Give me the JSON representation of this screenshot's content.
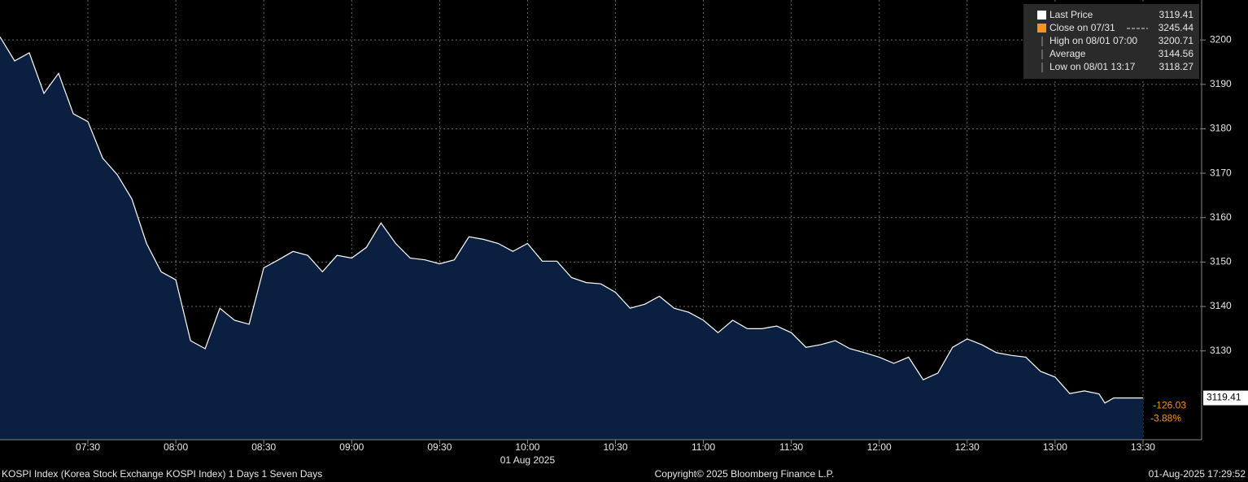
{
  "chart_data": {
    "type": "area",
    "x": [
      "07:00",
      "07:05",
      "07:10",
      "07:15",
      "07:20",
      "07:25",
      "07:30",
      "07:35",
      "07:40",
      "07:45",
      "07:50",
      "07:55",
      "08:00",
      "08:05",
      "08:10",
      "08:15",
      "08:20",
      "08:25",
      "08:30",
      "08:35",
      "08:40",
      "08:45",
      "08:50",
      "08:55",
      "09:00",
      "09:05",
      "09:10",
      "09:15",
      "09:20",
      "09:25",
      "09:30",
      "09:35",
      "09:40",
      "09:45",
      "09:50",
      "09:55",
      "10:00",
      "10:05",
      "10:10",
      "10:15",
      "10:20",
      "10:25",
      "10:30",
      "10:35",
      "10:40",
      "10:45",
      "10:50",
      "10:55",
      "11:00",
      "11:05",
      "11:10",
      "11:15",
      "11:20",
      "11:25",
      "11:30",
      "11:35",
      "11:40",
      "11:45",
      "11:50",
      "11:55",
      "12:00",
      "12:05",
      "12:10",
      "12:15",
      "12:20",
      "12:25",
      "12:30",
      "12:35",
      "12:40",
      "12:45",
      "12:50",
      "12:55",
      "13:00",
      "13:05",
      "13:10",
      "13:15",
      "13:17",
      "13:20",
      "13:25",
      "13:30"
    ],
    "series": [
      {
        "name": "Last Price",
        "color": "#ffffff",
        "fill": "#0b2040",
        "last": 3119.41,
        "values": [
          3200.71,
          3195.3,
          3197.1,
          3188,
          3192.5,
          3183.4,
          3181.6,
          3173.4,
          3169.7,
          3164.2,
          3154.2,
          3147.8,
          3146,
          3132.3,
          3130.5,
          3139.6,
          3136.9,
          3136,
          3148.7,
          3150.5,
          3152.4,
          3151.5,
          3147.8,
          3151.5,
          3150.9,
          3153.3,
          3158.8,
          3154.2,
          3150.9,
          3150.5,
          3149.6,
          3150.5,
          3155.7,
          3155.1,
          3154.2,
          3152.4,
          3154.2,
          3150.2,
          3150.2,
          3146.5,
          3145.4,
          3145.1,
          3143.2,
          3139.6,
          3140.5,
          3142.3,
          3139.6,
          3138.7,
          3136.9,
          3134.1,
          3136.9,
          3135,
          3135,
          3135.6,
          3134.1,
          3130.8,
          3131.4,
          3132.3,
          3130.5,
          3129.6,
          3128.6,
          3127.2,
          3128.6,
          3123.5,
          3125,
          3130.8,
          3132.7,
          3131.4,
          3129.6,
          3129,
          3128.6,
          3125.4,
          3124.1,
          3120.4,
          3121,
          3120.3,
          3118.27,
          3119.4,
          3119.41,
          3119.41
        ]
      }
    ],
    "legend_entries": [
      {
        "label": "Close on 07/31",
        "value": 3245.44,
        "color": "#f7941d"
      },
      {
        "label": "High on 08/01 07:00",
        "value": 3200.71
      },
      {
        "label": "Average",
        "value": 3144.56
      },
      {
        "label": "Low on 08/01 13:17",
        "value": 3118.27
      }
    ],
    "change": -126.03,
    "change_pct": {
      "value": -3.88,
      "label": "-3.88%"
    },
    "change_color": "#f7941d",
    "xlim": [
      "07:00",
      "13:50"
    ],
    "xticks": [
      "07:30",
      "08:00",
      "08:30",
      "09:00",
      "09:30",
      "10:00",
      "10:30",
      "11:00",
      "11:30",
      "12:00",
      "12:30",
      "13:00",
      "13:30"
    ],
    "date_label": "01 Aug 2025",
    "ylim": [
      3110,
      3209
    ],
    "yticks": [
      3130,
      3140,
      3150,
      3160,
      3170,
      3180,
      3190,
      3200
    ],
    "grid": true
  },
  "footer": {
    "left": "KOSPI Index (Korea Stock Exchange KOSPI Index) 1 Days 1 Seven Days",
    "center": "Copyright© 2025 Bloomberg Finance L.P.",
    "right": "01-Aug-2025 17:29:52"
  }
}
